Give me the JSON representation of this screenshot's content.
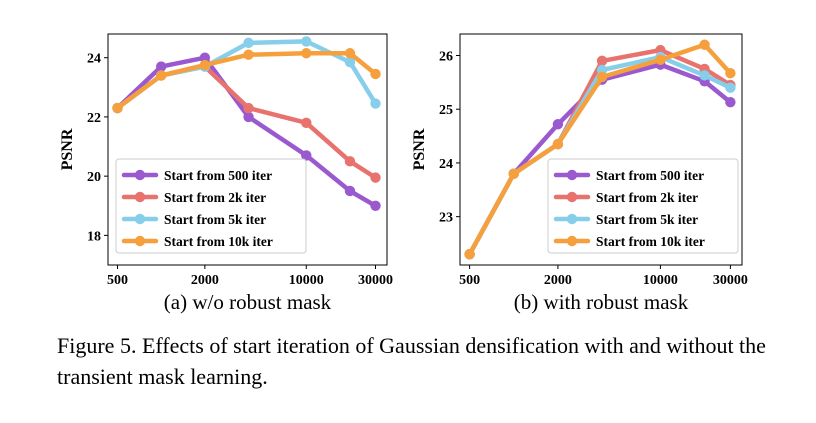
{
  "chart_data": [
    {
      "type": "line",
      "subcaption": "(a) w/o robust mask",
      "ylabel": "PSNR",
      "xlabel": "",
      "x_scale": "log",
      "x_ticks": [
        500,
        2000,
        10000,
        30000
      ],
      "x_tick_labels": [
        "500",
        "2000",
        "10000",
        "30000"
      ],
      "y_ticks": [
        18,
        20,
        22,
        24
      ],
      "y_tick_labels": [
        "18",
        "20",
        "22",
        "24"
      ],
      "ylim": [
        17,
        24.8
      ],
      "xlim": [
        430,
        36000
      ],
      "grid": false,
      "legend_position": "lower-left",
      "x": [
        500,
        1000,
        2000,
        4000,
        10000,
        20000,
        30000
      ],
      "series": [
        {
          "name": "Start from 500 iter",
          "color": "#9b59d0",
          "values": [
            22.3,
            23.7,
            24.0,
            22.0,
            20.7,
            19.5,
            19.0
          ]
        },
        {
          "name": "Start from 2k iter",
          "color": "#e8736e",
          "values": [
            22.3,
            23.4,
            23.7,
            22.3,
            21.8,
            20.5,
            19.95
          ]
        },
        {
          "name": "Start from 5k iter",
          "color": "#87ceeb",
          "values": [
            22.3,
            23.4,
            23.7,
            24.5,
            24.55,
            23.85,
            22.45
          ]
        },
        {
          "name": "Start from 10k iter",
          "color": "#f5a03c",
          "values": [
            22.3,
            23.4,
            23.75,
            24.1,
            24.15,
            24.15,
            23.45
          ]
        }
      ]
    },
    {
      "type": "line",
      "subcaption": "(b) with robust mask",
      "ylabel": "PSNR",
      "xlabel": "",
      "x_scale": "log",
      "x_ticks": [
        500,
        2000,
        10000,
        30000
      ],
      "x_tick_labels": [
        "500",
        "2000",
        "10000",
        "30000"
      ],
      "y_ticks": [
        23,
        24,
        25,
        26
      ],
      "y_tick_labels": [
        "23",
        "24",
        "25",
        "26"
      ],
      "ylim": [
        22.1,
        26.4
      ],
      "xlim": [
        430,
        36000
      ],
      "grid": false,
      "legend_position": "lower-right",
      "x": [
        500,
        1000,
        2000,
        4000,
        10000,
        20000,
        30000
      ],
      "series": [
        {
          "name": "Start from 500 iter",
          "color": "#9b59d0",
          "values": [
            22.3,
            23.8,
            24.72,
            25.55,
            25.83,
            25.52,
            25.13
          ]
        },
        {
          "name": "Start from 2k iter",
          "color": "#e8736e",
          "values": [
            22.3,
            23.8,
            24.35,
            25.9,
            26.1,
            25.75,
            25.45
          ]
        },
        {
          "name": "Start from 5k iter",
          "color": "#87ceeb",
          "values": [
            22.3,
            23.8,
            24.35,
            25.73,
            25.97,
            25.63,
            25.4
          ]
        },
        {
          "name": "Start from 10k iter",
          "color": "#f5a03c",
          "values": [
            22.3,
            23.8,
            24.35,
            25.6,
            25.92,
            26.2,
            25.67
          ]
        }
      ]
    }
  ],
  "caption": "Figure 5.  Effects of start iteration of Gaussian densification with and without the transient mask learning."
}
